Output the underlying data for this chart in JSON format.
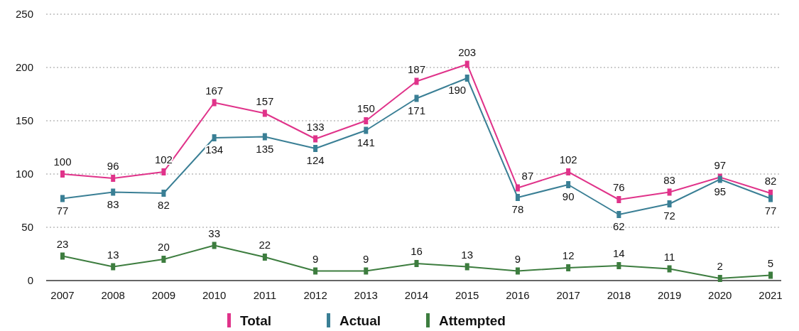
{
  "chart_data": {
    "type": "line",
    "categories": [
      "2007",
      "2008",
      "2009",
      "2010",
      "2011",
      "2012",
      "2013",
      "2014",
      "2015",
      "2016",
      "2017",
      "2018",
      "2019",
      "2020",
      "2021"
    ],
    "series": [
      {
        "name": "Total",
        "color": "#e0338a",
        "values": [
          100,
          96,
          102,
          167,
          157,
          133,
          150,
          187,
          203,
          87,
          102,
          76,
          83,
          97,
          82
        ]
      },
      {
        "name": "Actual",
        "color": "#3a7f95",
        "values": [
          77,
          83,
          82,
          134,
          135,
          124,
          141,
          171,
          190,
          78,
          90,
          62,
          72,
          95,
          77
        ]
      },
      {
        "name": "Attempted",
        "color": "#3d7d3f",
        "values": [
          23,
          13,
          20,
          33,
          22,
          9,
          9,
          16,
          13,
          9,
          12,
          14,
          11,
          2,
          5
        ]
      }
    ],
    "ylim": [
      0,
      250
    ],
    "yticks": [
      0,
      50,
      100,
      150,
      200,
      250
    ],
    "grid": "y",
    "legend": "bottom",
    "marker": "square",
    "line_style": "solid",
    "data_labels": true
  }
}
